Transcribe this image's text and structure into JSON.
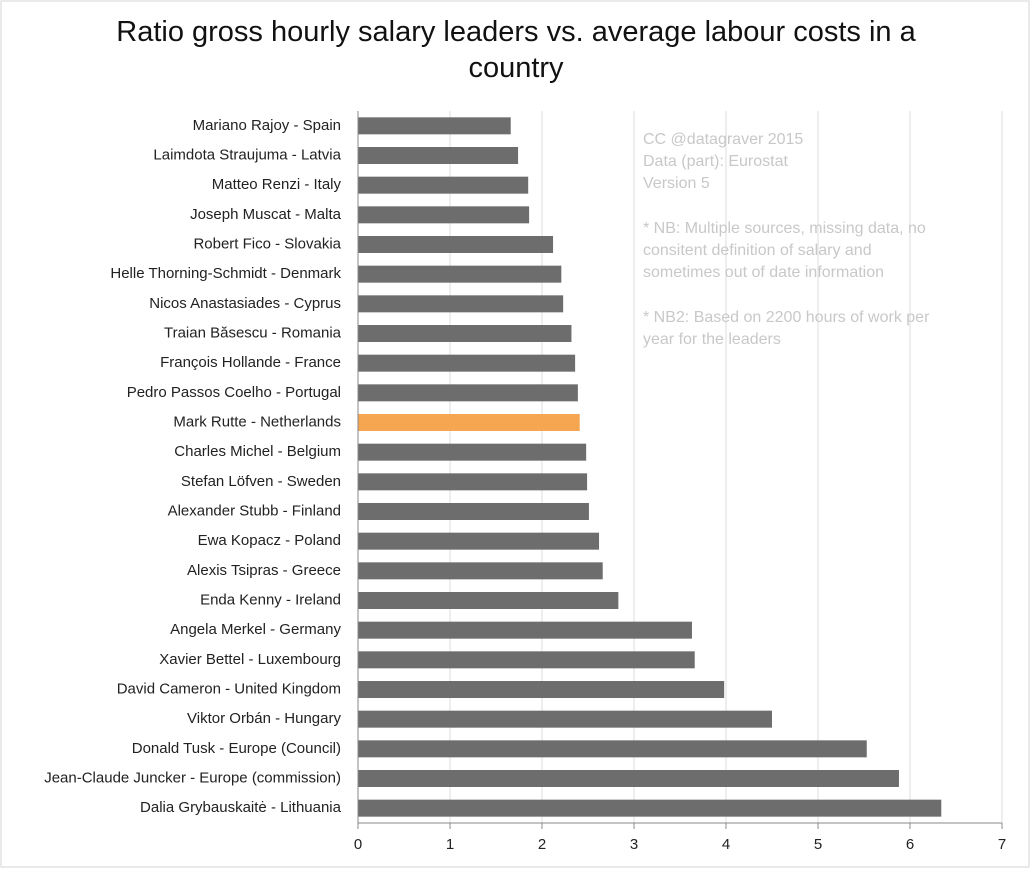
{
  "chart_data": {
    "type": "barh",
    "title": "Ratio gross hourly salary leaders vs. average labour costs in a country",
    "categories": [
      "Mariano Rajoy - Spain",
      "Laimdota Straujuma - Latvia",
      "Matteo Renzi - Italy",
      "Joseph Muscat - Malta",
      "Robert Fico - Slovakia",
      "Helle Thorning-Schmidt - Denmark",
      "Nicos Anastasiades - Cyprus",
      "Traian Băsescu - Romania",
      "François Hollande - France",
      "Pedro Passos Coelho - Portugal",
      "Mark Rutte - Netherlands",
      "Charles Michel - Belgium",
      "Stefan Löfven - Sweden",
      "Alexander Stubb - Finland",
      "Ewa Kopacz - Poland",
      "Alexis Tsipras - Greece",
      "Enda Kenny - Ireland",
      "Angela Merkel - Germany",
      "Xavier Bettel - Luxembourg",
      "David Cameron - United Kingdom",
      "Viktor Orbán - Hungary",
      "Donald Tusk - Europe (Council)",
      "Jean-Claude Juncker - Europe (commission)",
      "Dalia Grybauskaitė - Lithuania"
    ],
    "values": [
      1.66,
      1.74,
      1.85,
      1.86,
      2.12,
      2.21,
      2.23,
      2.32,
      2.36,
      2.39,
      2.41,
      2.48,
      2.49,
      2.51,
      2.62,
      2.66,
      2.83,
      3.63,
      3.66,
      3.98,
      4.5,
      5.53,
      5.88,
      6.34
    ],
    "colors": [
      "#6d6d6d",
      "#6d6d6d",
      "#6d6d6d",
      "#6d6d6d",
      "#6d6d6d",
      "#6d6d6d",
      "#6d6d6d",
      "#6d6d6d",
      "#6d6d6d",
      "#6d6d6d",
      "#f6a550",
      "#6d6d6d",
      "#6d6d6d",
      "#6d6d6d",
      "#6d6d6d",
      "#6d6d6d",
      "#6d6d6d",
      "#6d6d6d",
      "#6d6d6d",
      "#6d6d6d",
      "#6d6d6d",
      "#6d6d6d",
      "#6d6d6d",
      "#6d6d6d"
    ],
    "xlim": [
      0,
      7
    ],
    "xticks": [
      0,
      1,
      2,
      3,
      4,
      5,
      6,
      7
    ],
    "grid": true,
    "annotation": [
      "CC @datagraver 2015",
      "Data (part): Eurostat",
      "Version 5",
      "* NB: Multiple sources, missing data, no",
      "consitent definition of salary and",
      "sometimes out of date information",
      "* NB2: Based on 2200 hours of work per",
      "year for the leaders"
    ]
  }
}
